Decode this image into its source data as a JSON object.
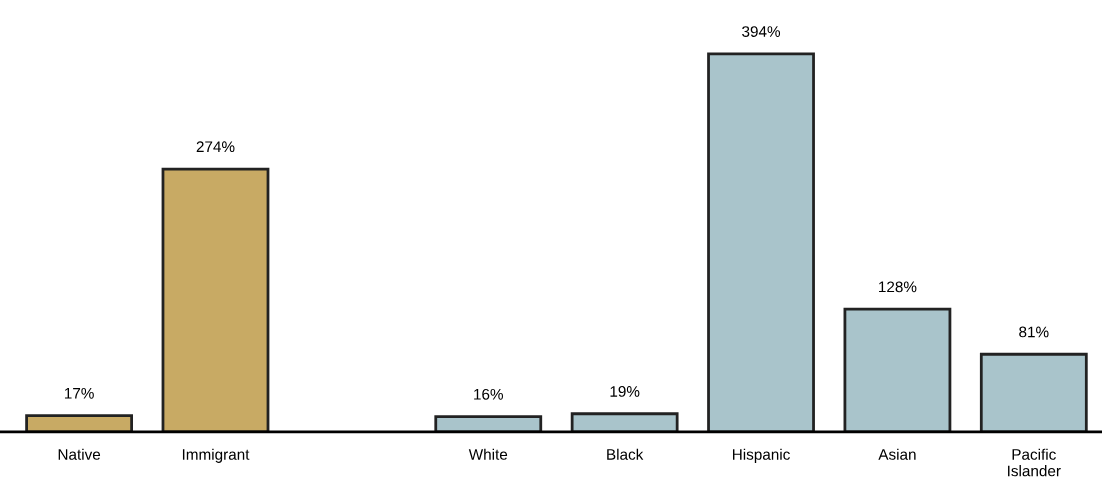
{
  "chart_data": {
    "type": "bar",
    "categories": [
      "Native",
      "Immigrant",
      null,
      "White",
      "Black",
      "Hispanic",
      "Asian",
      "Pacific\nIslander"
    ],
    "values": [
      17,
      274,
      null,
      16,
      19,
      394,
      128,
      81
    ],
    "value_labels": [
      "17%",
      "274%",
      null,
      "16%",
      "19%",
      "394%",
      "128%",
      "81%"
    ],
    "colors": [
      "#c8aa64",
      "#c8aa64",
      null,
      "#a9c4cb",
      "#a9c4cb",
      "#a9c4cb",
      "#a9c4cb",
      "#a9c4cb"
    ],
    "grid": false,
    "legend": false
  }
}
